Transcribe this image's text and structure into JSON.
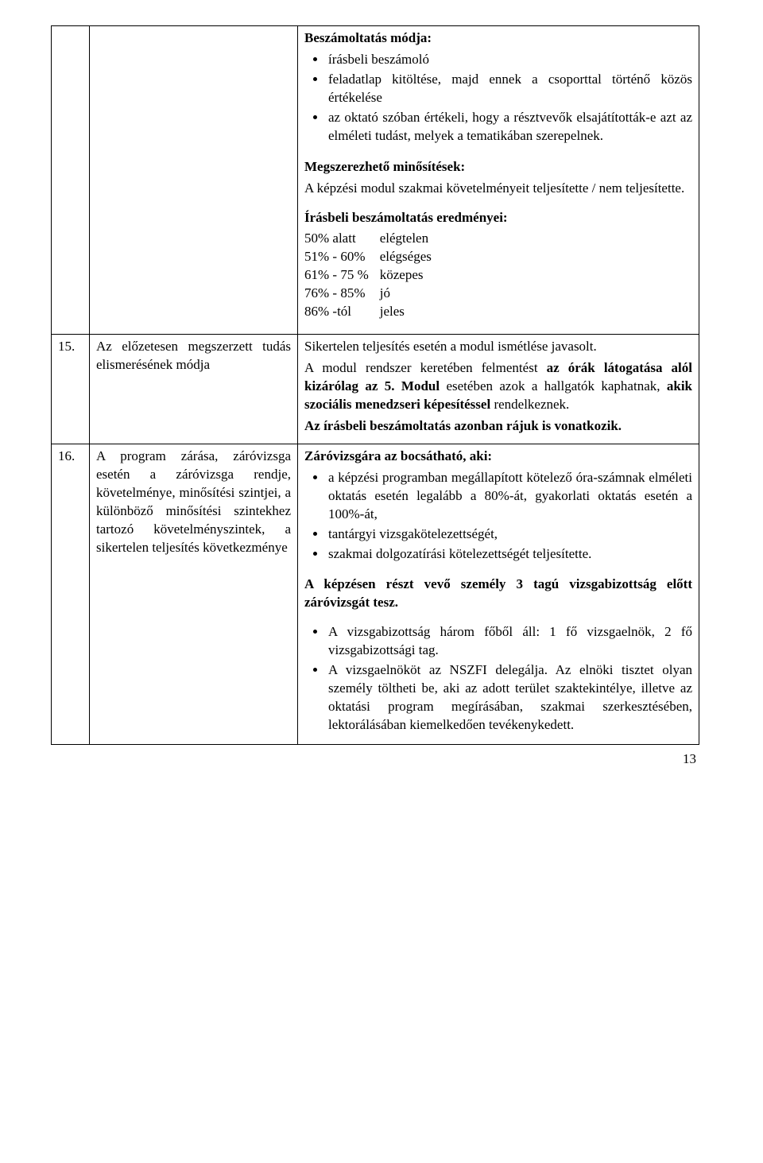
{
  "row_top": {
    "heading1": "Beszámoltatás módja:",
    "bullets1": [
      "írásbeli beszámoló",
      "feladatlap kitöltése, majd ennek a csoporttal történő közös értékelése",
      "az oktató szóban értékeli, hogy a résztvevők elsajátították-e azt az elméleti tudást, melyek a tematikában szerepelnek."
    ],
    "heading2": "Megszerezhető minősítések:",
    "body2": "A képzési modul szakmai követelményeit teljesítette / nem teljesítette.",
    "heading3": "Írásbeli beszámoltatás eredményei:",
    "grading": [
      {
        "range": "50% alatt",
        "grade": "elégtelen"
      },
      {
        "range": "51% - 60%",
        "grade": "elégséges"
      },
      {
        "range": "61% - 75 %",
        "grade": "közepes"
      },
      {
        "range": "76% - 85%",
        "grade": "jó"
      },
      {
        "range": "86% -tól",
        "grade": "jeles"
      }
    ]
  },
  "row15": {
    "num": "15.",
    "label": "Az előzetesen megszerzett tudás elismerésének módja",
    "lead": "Sikertelen teljesítés esetén a modul ismétlése javasolt.",
    "sent_pre": "A modul rendszer keretében felmentést ",
    "sent_bold1": "az órák látogatása alól kizárólag az 5. Modul",
    "sent_mid1": " esetében azok a hallgatók kaphatnak, ",
    "sent_bold2": "akik szociális menedzseri képesítéssel",
    "sent_mid2": " rendelkeznek.",
    "sent2": "Az írásbeli beszámoltatás azonban rájuk is vonatkozik."
  },
  "row16": {
    "num": "16.",
    "label": "A program zárása, záróvizsga esetén a záróvizsga rendje, követelménye, minősítési szintjei, a különböző minősítési szintekhez tartozó követelményszintek, a sikertelen teljesítés következménye",
    "heading": "Záróvizsgára az bocsátható, aki:",
    "bullets": [
      "a képzési programban megállapított kötelező óra-számnak elméleti oktatás esetén legalább a 80%-át, gyakorlati oktatás esetén a 100%-át,",
      "tantárgyi vizsgakötelezettségét,",
      "szakmai dolgozatírási kötelezettségét teljesítette."
    ],
    "mid": "A képzésen részt vevő személy 3 tagú vizsgabizottság előtt záróvizsgát tesz.",
    "bullets2": [
      "A vizsgabizottság három főből áll: 1 fő vizsgaelnök, 2 fő vizsgabizottsági tag.",
      "A vizsgaelnököt az NSZFI delegálja. Az elnöki tisztet olyan személy töltheti be, aki az adott terület szaktekintélye, illetve az oktatási program megírásában, szakmai szerkesztésében, lektorálásában kiemelkedően tevékenykedett."
    ]
  },
  "page_number": "13"
}
